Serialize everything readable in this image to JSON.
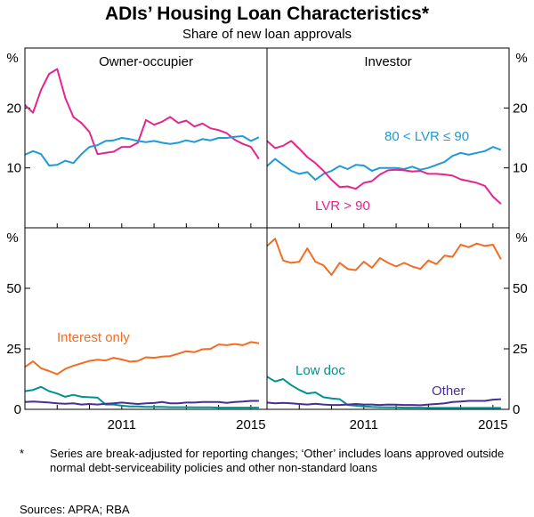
{
  "title": "ADIs’ Housing Loan Characteristics*",
  "subtitle": "Share of new loan approvals",
  "footnote": {
    "mark": "*",
    "text": "Series are break-adjusted for reporting changes; ‘Other’ includes loans approved outside normal debt-serviceability policies and other non-standard loans"
  },
  "sources": "Sources:   APRA; RBA",
  "colors": {
    "pink": "#e2268d",
    "blue": "#1f9ad6",
    "orange": "#f26c21",
    "teal": "#00928f",
    "purple": "#4a2f8f"
  },
  "chart_data": [
    {
      "type": "line",
      "panel": "top-left",
      "panel_title": "Owner-occupier",
      "ylabel": "%",
      "ylim": [
        0,
        30
      ],
      "yticks": [
        10,
        20
      ],
      "xlim": [
        2008.0,
        2015.5
      ],
      "xticks": [
        2011,
        2015
      ],
      "series": [
        {
          "name": "LVR > 90",
          "color": "#e2268d",
          "x": [
            2008.0,
            2008.25,
            2008.5,
            2008.75,
            2009.0,
            2009.25,
            2009.5,
            2009.75,
            2010.0,
            2010.25,
            2010.5,
            2010.75,
            2011.0,
            2011.25,
            2011.5,
            2011.75,
            2012.0,
            2012.25,
            2012.5,
            2012.75,
            2013.0,
            2013.25,
            2013.5,
            2013.75,
            2014.0,
            2014.25,
            2014.5,
            2014.75,
            2015.0,
            2015.25
          ],
          "y": [
            20.5,
            19.2,
            23.0,
            25.7,
            26.5,
            21.7,
            18.5,
            17.5,
            16.0,
            12.3,
            12.5,
            12.7,
            13.5,
            13.5,
            14.2,
            18.0,
            17.2,
            17.7,
            18.5,
            17.5,
            17.9,
            16.9,
            17.4,
            16.6,
            16.3,
            15.8,
            14.7,
            14.0,
            13.5,
            11.5
          ]
        },
        {
          "name": "80 < LVR ≤ 90",
          "color": "#1f9ad6",
          "x": [
            2008.0,
            2008.25,
            2008.5,
            2008.75,
            2009.0,
            2009.25,
            2009.5,
            2009.75,
            2010.0,
            2010.25,
            2010.5,
            2010.75,
            2011.0,
            2011.25,
            2011.5,
            2011.75,
            2012.0,
            2012.25,
            2012.5,
            2012.75,
            2013.0,
            2013.25,
            2013.5,
            2013.75,
            2014.0,
            2014.25,
            2014.5,
            2014.75,
            2015.0,
            2015.25
          ],
          "y": [
            12.2,
            12.8,
            12.3,
            10.4,
            10.5,
            11.2,
            10.8,
            12.3,
            13.5,
            13.8,
            14.5,
            14.6,
            15.0,
            14.8,
            14.5,
            14.3,
            14.5,
            14.2,
            14.0,
            14.2,
            14.6,
            14.3,
            14.8,
            14.6,
            15.0,
            15.0,
            15.2,
            15.3,
            14.5,
            15.1
          ]
        }
      ]
    },
    {
      "type": "line",
      "panel": "top-right",
      "panel_title": "Investor",
      "ylabel": "%",
      "ylim": [
        0,
        30
      ],
      "yticks": [
        10,
        20
      ],
      "xlim": [
        2008.0,
        2015.5
      ],
      "xticks": [
        2011,
        2015
      ],
      "series": [
        {
          "name": "80 < LVR ≤ 90",
          "color": "#1f9ad6",
          "x": [
            2008.0,
            2008.25,
            2008.5,
            2008.75,
            2009.0,
            2009.25,
            2009.5,
            2009.75,
            2010.0,
            2010.25,
            2010.5,
            2010.75,
            2011.0,
            2011.25,
            2011.5,
            2011.75,
            2012.0,
            2012.25,
            2012.5,
            2012.75,
            2013.0,
            2013.25,
            2013.5,
            2013.75,
            2014.0,
            2014.25,
            2014.5,
            2014.75,
            2015.0,
            2015.25
          ],
          "y": [
            10.3,
            11.5,
            10.5,
            9.5,
            9.0,
            9.3,
            8.0,
            9.0,
            9.5,
            10.3,
            9.8,
            10.5,
            10.4,
            9.5,
            10.0,
            10.0,
            10.0,
            9.8,
            10.2,
            9.7,
            10.0,
            10.5,
            11.0,
            12.0,
            12.5,
            12.2,
            12.5,
            12.8,
            13.5,
            13.0
          ]
        },
        {
          "name": "LVR > 90",
          "color": "#e2268d",
          "x": [
            2008.0,
            2008.25,
            2008.5,
            2008.75,
            2009.0,
            2009.25,
            2009.5,
            2009.75,
            2010.0,
            2010.25,
            2010.5,
            2010.75,
            2011.0,
            2011.25,
            2011.5,
            2011.75,
            2012.0,
            2012.25,
            2012.5,
            2012.75,
            2013.0,
            2013.25,
            2013.5,
            2013.75,
            2014.0,
            2014.25,
            2014.5,
            2014.75,
            2015.0,
            2015.25
          ],
          "y": [
            14.5,
            13.3,
            13.7,
            14.5,
            13.2,
            11.8,
            10.8,
            9.5,
            8.0,
            6.8,
            6.9,
            6.5,
            7.5,
            7.8,
            8.9,
            9.6,
            9.7,
            9.6,
            9.4,
            9.5,
            9.0,
            9.0,
            8.9,
            8.7,
            8.1,
            7.8,
            7.5,
            7.0,
            5.2,
            4.0
          ]
        }
      ]
    },
    {
      "type": "line",
      "panel": "bottom-left",
      "ylabel": "%",
      "ylim": [
        0,
        75
      ],
      "yticks": [
        0,
        25,
        50
      ],
      "xlim": [
        2008.0,
        2015.5
      ],
      "xticks": [
        2011,
        2015
      ],
      "series": [
        {
          "name": "Interest only",
          "color": "#f26c21",
          "x": [
            2008.0,
            2008.25,
            2008.5,
            2008.75,
            2009.0,
            2009.25,
            2009.5,
            2009.75,
            2010.0,
            2010.25,
            2010.5,
            2010.75,
            2011.0,
            2011.25,
            2011.5,
            2011.75,
            2012.0,
            2012.25,
            2012.5,
            2012.75,
            2013.0,
            2013.25,
            2013.5,
            2013.75,
            2014.0,
            2014.25,
            2014.5,
            2014.75,
            2015.0,
            2015.25
          ],
          "y": [
            17.5,
            19.8,
            17.0,
            15.8,
            14.5,
            16.7,
            18.0,
            19.0,
            20.0,
            20.5,
            20.2,
            21.3,
            20.6,
            19.7,
            20.0,
            21.5,
            21.3,
            21.8,
            22.0,
            23.0,
            24.0,
            23.6,
            24.8,
            25.0,
            26.8,
            26.5,
            27.0,
            26.5,
            27.8,
            27.3
          ]
        },
        {
          "name": "Low doc",
          "color": "#00928f",
          "x": [
            2008.0,
            2008.25,
            2008.5,
            2008.75,
            2009.0,
            2009.25,
            2009.5,
            2009.75,
            2010.0,
            2010.25,
            2010.5,
            2010.75,
            2011.0,
            2011.25,
            2011.5,
            2011.75,
            2012.0,
            2012.25,
            2012.5,
            2012.75,
            2013.0,
            2013.25,
            2013.5,
            2013.75,
            2014.0,
            2014.25,
            2014.5,
            2014.75,
            2015.0,
            2015.25
          ],
          "y": [
            7.5,
            8.0,
            9.3,
            7.5,
            6.5,
            5.2,
            6.0,
            5.2,
            5.0,
            4.8,
            2.0,
            2.0,
            1.5,
            1.2,
            1.2,
            1.0,
            1.0,
            1.0,
            0.9,
            0.9,
            0.9,
            0.8,
            0.8,
            0.8,
            0.7,
            0.7,
            0.7,
            0.7,
            0.7,
            0.7
          ]
        },
        {
          "name": "Other",
          "color": "#4a2f8f",
          "x": [
            2008.0,
            2008.25,
            2008.5,
            2008.75,
            2009.0,
            2009.25,
            2009.5,
            2009.75,
            2010.0,
            2010.25,
            2010.5,
            2010.75,
            2011.0,
            2011.25,
            2011.5,
            2011.75,
            2012.0,
            2012.25,
            2012.5,
            2012.75,
            2013.0,
            2013.25,
            2013.5,
            2013.75,
            2014.0,
            2014.25,
            2014.5,
            2014.75,
            2015.0,
            2015.25
          ],
          "y": [
            3.0,
            3.2,
            3.0,
            2.8,
            2.5,
            2.3,
            2.5,
            2.0,
            2.2,
            2.0,
            2.3,
            2.5,
            2.8,
            2.5,
            2.2,
            2.5,
            2.6,
            3.0,
            2.5,
            2.5,
            2.8,
            2.8,
            3.0,
            3.0,
            3.0,
            2.7,
            3.0,
            3.2,
            3.5,
            3.5
          ]
        }
      ]
    },
    {
      "type": "line",
      "panel": "bottom-right",
      "ylabel": "%",
      "ylim": [
        0,
        75
      ],
      "yticks": [
        0,
        25,
        50
      ],
      "xlim": [
        2008.0,
        2015.5
      ],
      "xticks": [
        2011,
        2015
      ],
      "series": [
        {
          "name": "",
          "color": "#f26c21",
          "x": [
            2008.0,
            2008.25,
            2008.5,
            2008.75,
            2009.0,
            2009.25,
            2009.5,
            2009.75,
            2010.0,
            2010.25,
            2010.5,
            2010.75,
            2011.0,
            2011.25,
            2011.5,
            2011.75,
            2012.0,
            2012.25,
            2012.5,
            2012.75,
            2013.0,
            2013.25,
            2013.5,
            2013.75,
            2014.0,
            2014.25,
            2014.5,
            2014.75,
            2015.0,
            2015.25
          ],
          "y": [
            67.5,
            70.5,
            61.5,
            60.5,
            61.0,
            66.5,
            61.0,
            59.5,
            55.5,
            60.5,
            58.0,
            57.5,
            61.0,
            58.5,
            62.5,
            60.5,
            59.0,
            60.5,
            59.0,
            58.0,
            61.5,
            60.0,
            63.5,
            63.0,
            68.0,
            67.0,
            68.5,
            67.5,
            68.0,
            62.0
          ]
        },
        {
          "name": "Low doc",
          "color": "#00928f",
          "x": [
            2008.0,
            2008.25,
            2008.5,
            2008.75,
            2009.0,
            2009.25,
            2009.5,
            2009.75,
            2010.0,
            2010.25,
            2010.5,
            2010.75,
            2011.0,
            2011.25,
            2011.5,
            2011.75,
            2012.0,
            2012.25,
            2012.5,
            2012.75,
            2013.0,
            2013.25,
            2013.5,
            2013.75,
            2014.0,
            2014.25,
            2014.5,
            2014.75,
            2015.0,
            2015.25
          ],
          "y": [
            13.5,
            11.5,
            12.5,
            10.0,
            8.0,
            6.5,
            7.0,
            5.0,
            4.5,
            4.2,
            1.8,
            1.5,
            1.2,
            1.0,
            0.9,
            0.8,
            0.8,
            0.7,
            0.7,
            0.7,
            0.6,
            0.6,
            0.6,
            0.6,
            0.6,
            0.6,
            0.6,
            0.6,
            0.6,
            0.6
          ]
        },
        {
          "name": "Other",
          "color": "#4a2f8f",
          "x": [
            2008.0,
            2008.25,
            2008.5,
            2008.75,
            2009.0,
            2009.25,
            2009.5,
            2009.75,
            2010.0,
            2010.25,
            2010.5,
            2010.75,
            2011.0,
            2011.25,
            2011.5,
            2011.75,
            2012.0,
            2012.25,
            2012.5,
            2012.75,
            2013.0,
            2013.25,
            2013.5,
            2013.75,
            2014.0,
            2014.25,
            2014.5,
            2014.75,
            2015.0,
            2015.25
          ],
          "y": [
            2.8,
            2.5,
            2.7,
            2.5,
            2.2,
            2.0,
            2.3,
            2.0,
            1.8,
            1.8,
            2.0,
            2.2,
            2.0,
            2.0,
            1.8,
            2.0,
            1.9,
            1.8,
            1.8,
            1.7,
            2.0,
            2.2,
            2.5,
            3.0,
            3.2,
            3.5,
            3.5,
            3.5,
            4.0,
            4.2
          ]
        }
      ]
    }
  ]
}
